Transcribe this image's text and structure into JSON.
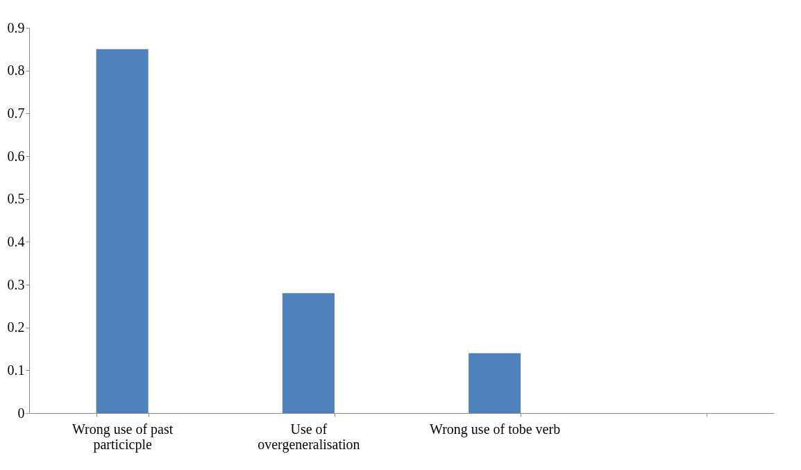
{
  "chart_data": {
    "type": "bar",
    "categories": [
      "Wrong use of past particicple",
      "Use of overgeneralisation",
      "Wrong use of tobe verb",
      null
    ],
    "values": [
      0.85,
      0.28,
      0.14,
      null
    ],
    "color": "#4f81bd",
    "ylim": [
      0,
      0.9
    ],
    "yticks": [
      0,
      0.1,
      0.2,
      0.3,
      0.4,
      0.5,
      0.6,
      0.7,
      0.8,
      0.9
    ],
    "grid": false
  }
}
